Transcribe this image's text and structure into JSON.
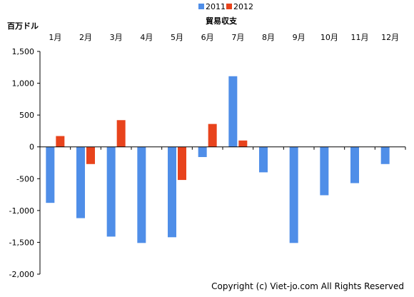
{
  "chart_data": {
    "type": "bar",
    "title": "貿易収支",
    "unit_label": "百万ドル",
    "categories": [
      "1月",
      "2月",
      "3月",
      "4月",
      "5月",
      "6月",
      "7月",
      "8月",
      "9月",
      "10月",
      "11月",
      "12月"
    ],
    "series": [
      {
        "name": "2011",
        "color": "#4f8ee8",
        "values": [
          -880,
          -1120,
          -1410,
          -1510,
          -1420,
          -160,
          1110,
          -400,
          -1510,
          -760,
          -570,
          -270
        ]
      },
      {
        "name": "2012",
        "color": "#e8431c",
        "values": [
          170,
          -270,
          420,
          null,
          -520,
          360,
          100,
          null,
          null,
          null,
          null,
          null
        ]
      }
    ],
    "ylim": [
      -2000,
      1500
    ],
    "yticks": [
      1500,
      1000,
      500,
      0,
      -500,
      -1000,
      -1500,
      -2000
    ],
    "ytick_labels": [
      "1,500",
      "1,000",
      "500",
      "0",
      "-500",
      "-1,000",
      "-1,500",
      "-2,000"
    ],
    "legend_position": "top-center",
    "grid": false
  },
  "footer": {
    "copyright": "Copyright (c) Viet-jo.com All Rights Reserved"
  }
}
